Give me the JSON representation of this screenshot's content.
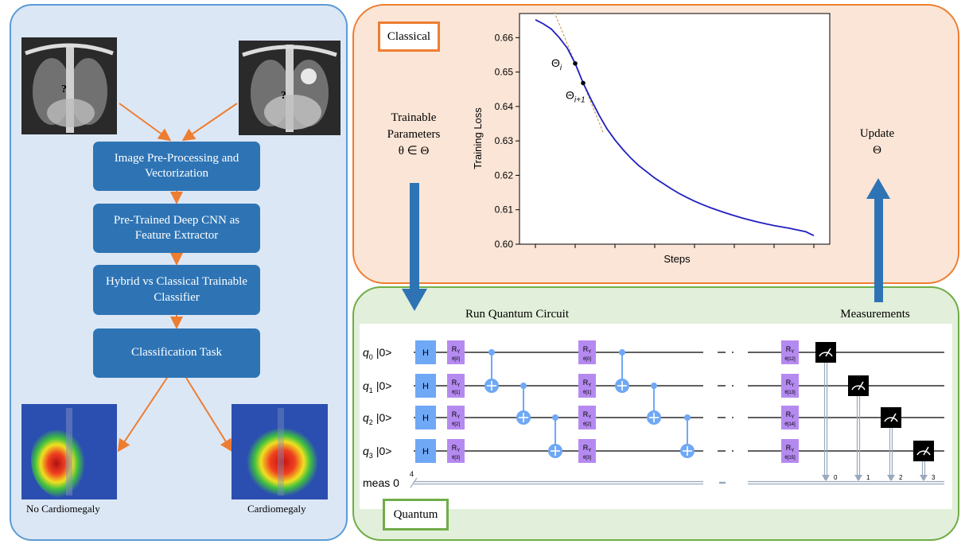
{
  "pipeline": {
    "steps": [
      "Image Pre-Processing and Vectorization",
      "Pre-Trained Deep CNN as Feature Extractor",
      "Hybrid vs Classical Trainable Classifier",
      "Classification Task"
    ],
    "input_marker": "?",
    "outputs": [
      "No Cardiomegaly",
      "Cardiomegaly"
    ]
  },
  "classical": {
    "tag": "Classical",
    "trainable_line1": "Trainable",
    "trainable_line2": "Parameters",
    "trainable_line3": "θ ∈ Θ",
    "update_line1": "Update",
    "update_line2": "Θ"
  },
  "chart_data": {
    "type": "line",
    "xlabel": "Steps",
    "ylabel": "Training Loss",
    "ylim": [
      0.6,
      0.667
    ],
    "yticks": [
      "0.60",
      "0.61",
      "0.62",
      "0.63",
      "0.64",
      "0.65",
      "0.66"
    ],
    "x": [
      0,
      1,
      2,
      3,
      4,
      5,
      6,
      7,
      8,
      9,
      10,
      11,
      12,
      13,
      14,
      15,
      16,
      17,
      18,
      19,
      20,
      21,
      22,
      23,
      24,
      25,
      26,
      27,
      28,
      29,
      30,
      31,
      32,
      33,
      34,
      35
    ],
    "series": [
      {
        "values": [
          0.6652,
          0.664,
          0.6625,
          0.66,
          0.657,
          0.6525,
          0.6468,
          0.642,
          0.6375,
          0.6335,
          0.6303,
          0.6275,
          0.625,
          0.6228,
          0.621,
          0.6192,
          0.6177,
          0.6162,
          0.6148,
          0.6136,
          0.6125,
          0.6115,
          0.6106,
          0.6098,
          0.609,
          0.6083,
          0.6076,
          0.607,
          0.6064,
          0.6059,
          0.6054,
          0.605,
          0.6046,
          0.6041,
          0.6036,
          0.6025
        ]
      }
    ],
    "annotations": [
      {
        "label": "Θ",
        "sub": "i",
        "x": 5
      },
      {
        "label": "Θ",
        "sub": "i+1",
        "x": 6
      }
    ],
    "grid": false
  },
  "quantum": {
    "tag": "Quantum",
    "run_label": "Run Quantum Circuit",
    "measurements_label": "Measurements",
    "qubits": [
      "q0 |0>",
      "q1 |0>",
      "q2 |0>",
      "q3 |0>"
    ],
    "qubit_names": [
      "q",
      "q",
      "q",
      "q"
    ],
    "qubit_subs": [
      "0",
      "1",
      "2",
      "3"
    ],
    "qubit_kets": [
      "|0>",
      "|0>",
      "|0>",
      "|0>"
    ],
    "meas_label": "meas 0",
    "meas_width": "4",
    "gate_h": "H",
    "gate_ry": "RY",
    "layer1_params": [
      "θ[0]",
      "θ[1]",
      "θ[2]",
      "θ[3]"
    ],
    "layer2_params": [
      "θ[0]",
      "θ[1]",
      "θ[2]",
      "θ[3]"
    ],
    "last_params": [
      "θ[12]",
      "θ[13]",
      "θ[14]",
      "θ[15]"
    ],
    "meas_indices": [
      "0",
      "1",
      "2",
      "3"
    ]
  },
  "colors": {
    "pipeline_box": "#2e74b5",
    "arrow_orange": "#ed7d31",
    "arrow_blue": "#2e74b5",
    "curve": "#1f1fbf",
    "h_gate": "#6fa8f5",
    "ry_gate": "#b58af0",
    "cnot": "#6fa8f5"
  }
}
